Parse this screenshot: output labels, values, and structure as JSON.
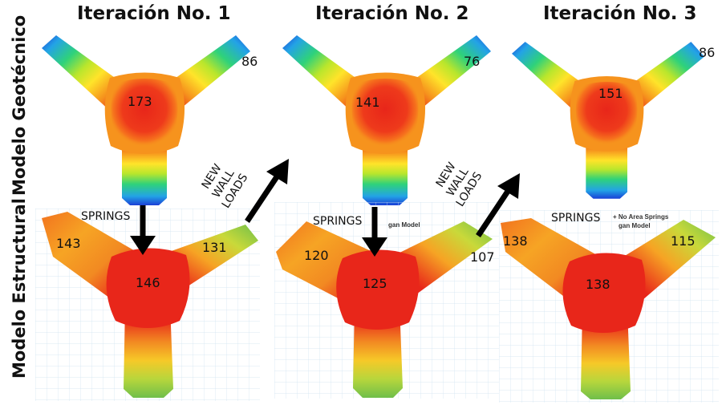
{
  "columns": [
    {
      "title": "Iteración No. 1"
    },
    {
      "title": "Iteración No. 2"
    },
    {
      "title": "Iteración No. 3"
    }
  ],
  "rows": {
    "geotechnical": "Modelo Geotécnico",
    "structural": "Modelo Estructural"
  },
  "geotechnical_values": [
    {
      "center": "173",
      "edge": "86"
    },
    {
      "center": "141",
      "edge": "76"
    },
    {
      "center": "151",
      "edge": "86"
    }
  ],
  "structural_values": [
    {
      "left": "143",
      "right": "131",
      "center": "146"
    },
    {
      "left": "120",
      "right": "107",
      "center": "125"
    },
    {
      "left": "138",
      "right": "115",
      "center": "138"
    }
  ],
  "springs_label": "SPRINGS",
  "new_wall_loads": [
    "NEW",
    "WALL",
    "LOADS"
  ],
  "panel_headers": {
    "panel2": "gan Model",
    "panel3_line1": "+ No Area Springs",
    "panel3_line2": "gan Model"
  },
  "colors": {
    "hot": "#e8261a",
    "warm": "#f6931d",
    "mid": "#ffe42a",
    "cool": "#23a3e6",
    "cold": "#1a3fd6",
    "struct_green": "#6fbf4a"
  }
}
